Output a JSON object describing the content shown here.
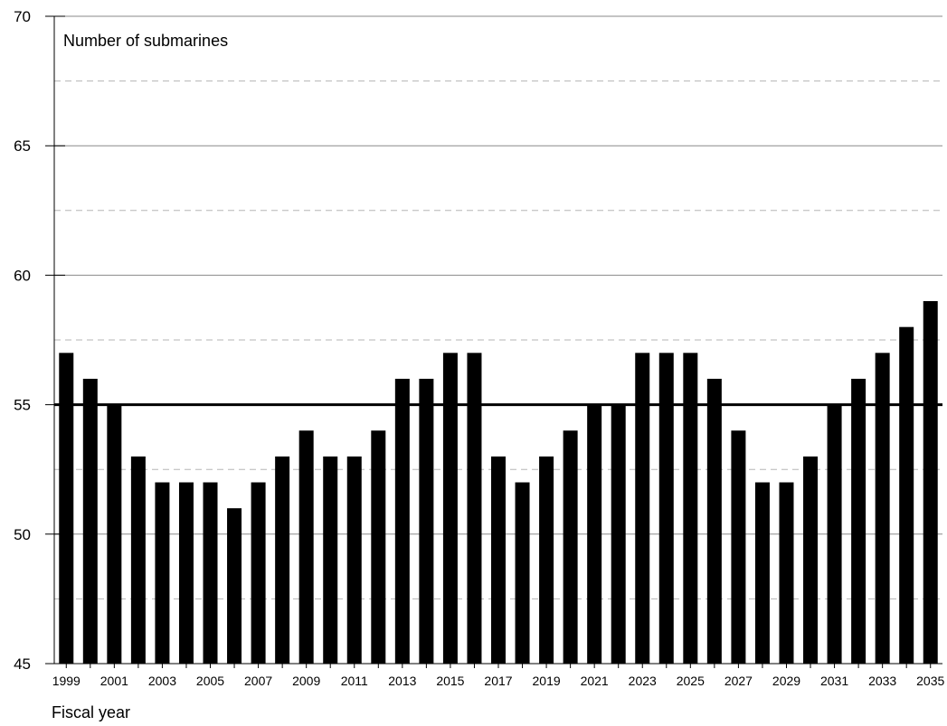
{
  "chart_data": {
    "type": "bar",
    "title": "",
    "ylabel": "Number of submarines",
    "xlabel": "Fiscal year",
    "ylim": [
      45,
      70
    ],
    "yticks": [
      45,
      50,
      55,
      60,
      65,
      70
    ],
    "grid": true,
    "reference_line": 55,
    "bar_color": "#000000",
    "x_tick_labels": [
      "1999",
      "2001",
      "2003",
      "2005",
      "2007",
      "2009",
      "2011",
      "2013",
      "2015",
      "2017",
      "2019",
      "2021",
      "2023",
      "2025",
      "2027",
      "2029",
      "2031",
      "2033",
      "2035"
    ],
    "categories": [
      "1999",
      "2000",
      "2001",
      "2002",
      "2003",
      "2004",
      "2005",
      "2006",
      "2007",
      "2008",
      "2009",
      "2010",
      "2011",
      "2012",
      "2013",
      "2014",
      "2015",
      "2016",
      "2017",
      "2018",
      "2019",
      "2020",
      "2021",
      "2022",
      "2023",
      "2024",
      "2025",
      "2026",
      "2027",
      "2028",
      "2029",
      "2030",
      "2031",
      "2032",
      "2033",
      "2034",
      "2035"
    ],
    "values": [
      57,
      56,
      55,
      53,
      52,
      52,
      52,
      51,
      52,
      53,
      54,
      53,
      53,
      54,
      56,
      56,
      57,
      57,
      53,
      52,
      53,
      54,
      55,
      55,
      57,
      57,
      57,
      56,
      54,
      52,
      52,
      53,
      55,
      56,
      57,
      58,
      59
    ]
  }
}
